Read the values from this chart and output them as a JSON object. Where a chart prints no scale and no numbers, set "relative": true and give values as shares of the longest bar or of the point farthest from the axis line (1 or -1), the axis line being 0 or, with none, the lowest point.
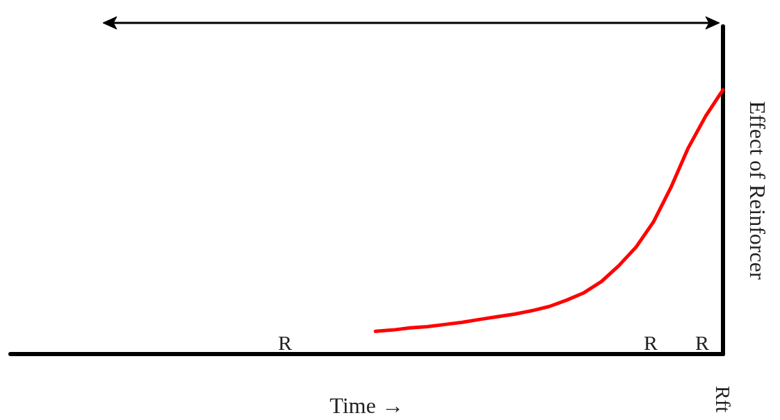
{
  "chart_data": {
    "type": "line",
    "relative": true,
    "xlabel": "Time →",
    "ylabel": "Effect of Reinforcer",
    "categories": [
      null,
      null,
      null,
      null,
      null,
      null,
      null,
      null,
      null,
      null,
      null,
      null,
      null,
      null,
      null,
      null,
      null,
      null,
      null,
      null,
      null,
      null,
      null,
      null,
      null,
      null,
      null,
      null,
      null,
      null,
      null,
      null,
      null,
      null,
      null,
      null,
      null,
      null,
      null,
      null,
      null,
      null
    ],
    "series": [
      {
        "color": "#ff0000",
        "values": [
          null,
          null,
          null,
          null,
          null,
          null,
          null,
          null,
          null,
          null,
          null,
          null,
          null,
          null,
          null,
          null,
          null,
          null,
          null,
          null,
          null,
          0.086,
          0.091,
          0.099,
          0.104,
          0.112,
          0.12,
          0.131,
          0.141,
          0.151,
          0.164,
          0.18,
          0.204,
          0.232,
          0.274,
          0.334,
          0.405,
          0.5,
          0.63,
          0.78,
          0.9,
          1
        ]
      }
    ],
    "annotations": [
      "R",
      "R",
      "R",
      "Rft"
    ],
    "marker": "none",
    "grid": false
  }
}
